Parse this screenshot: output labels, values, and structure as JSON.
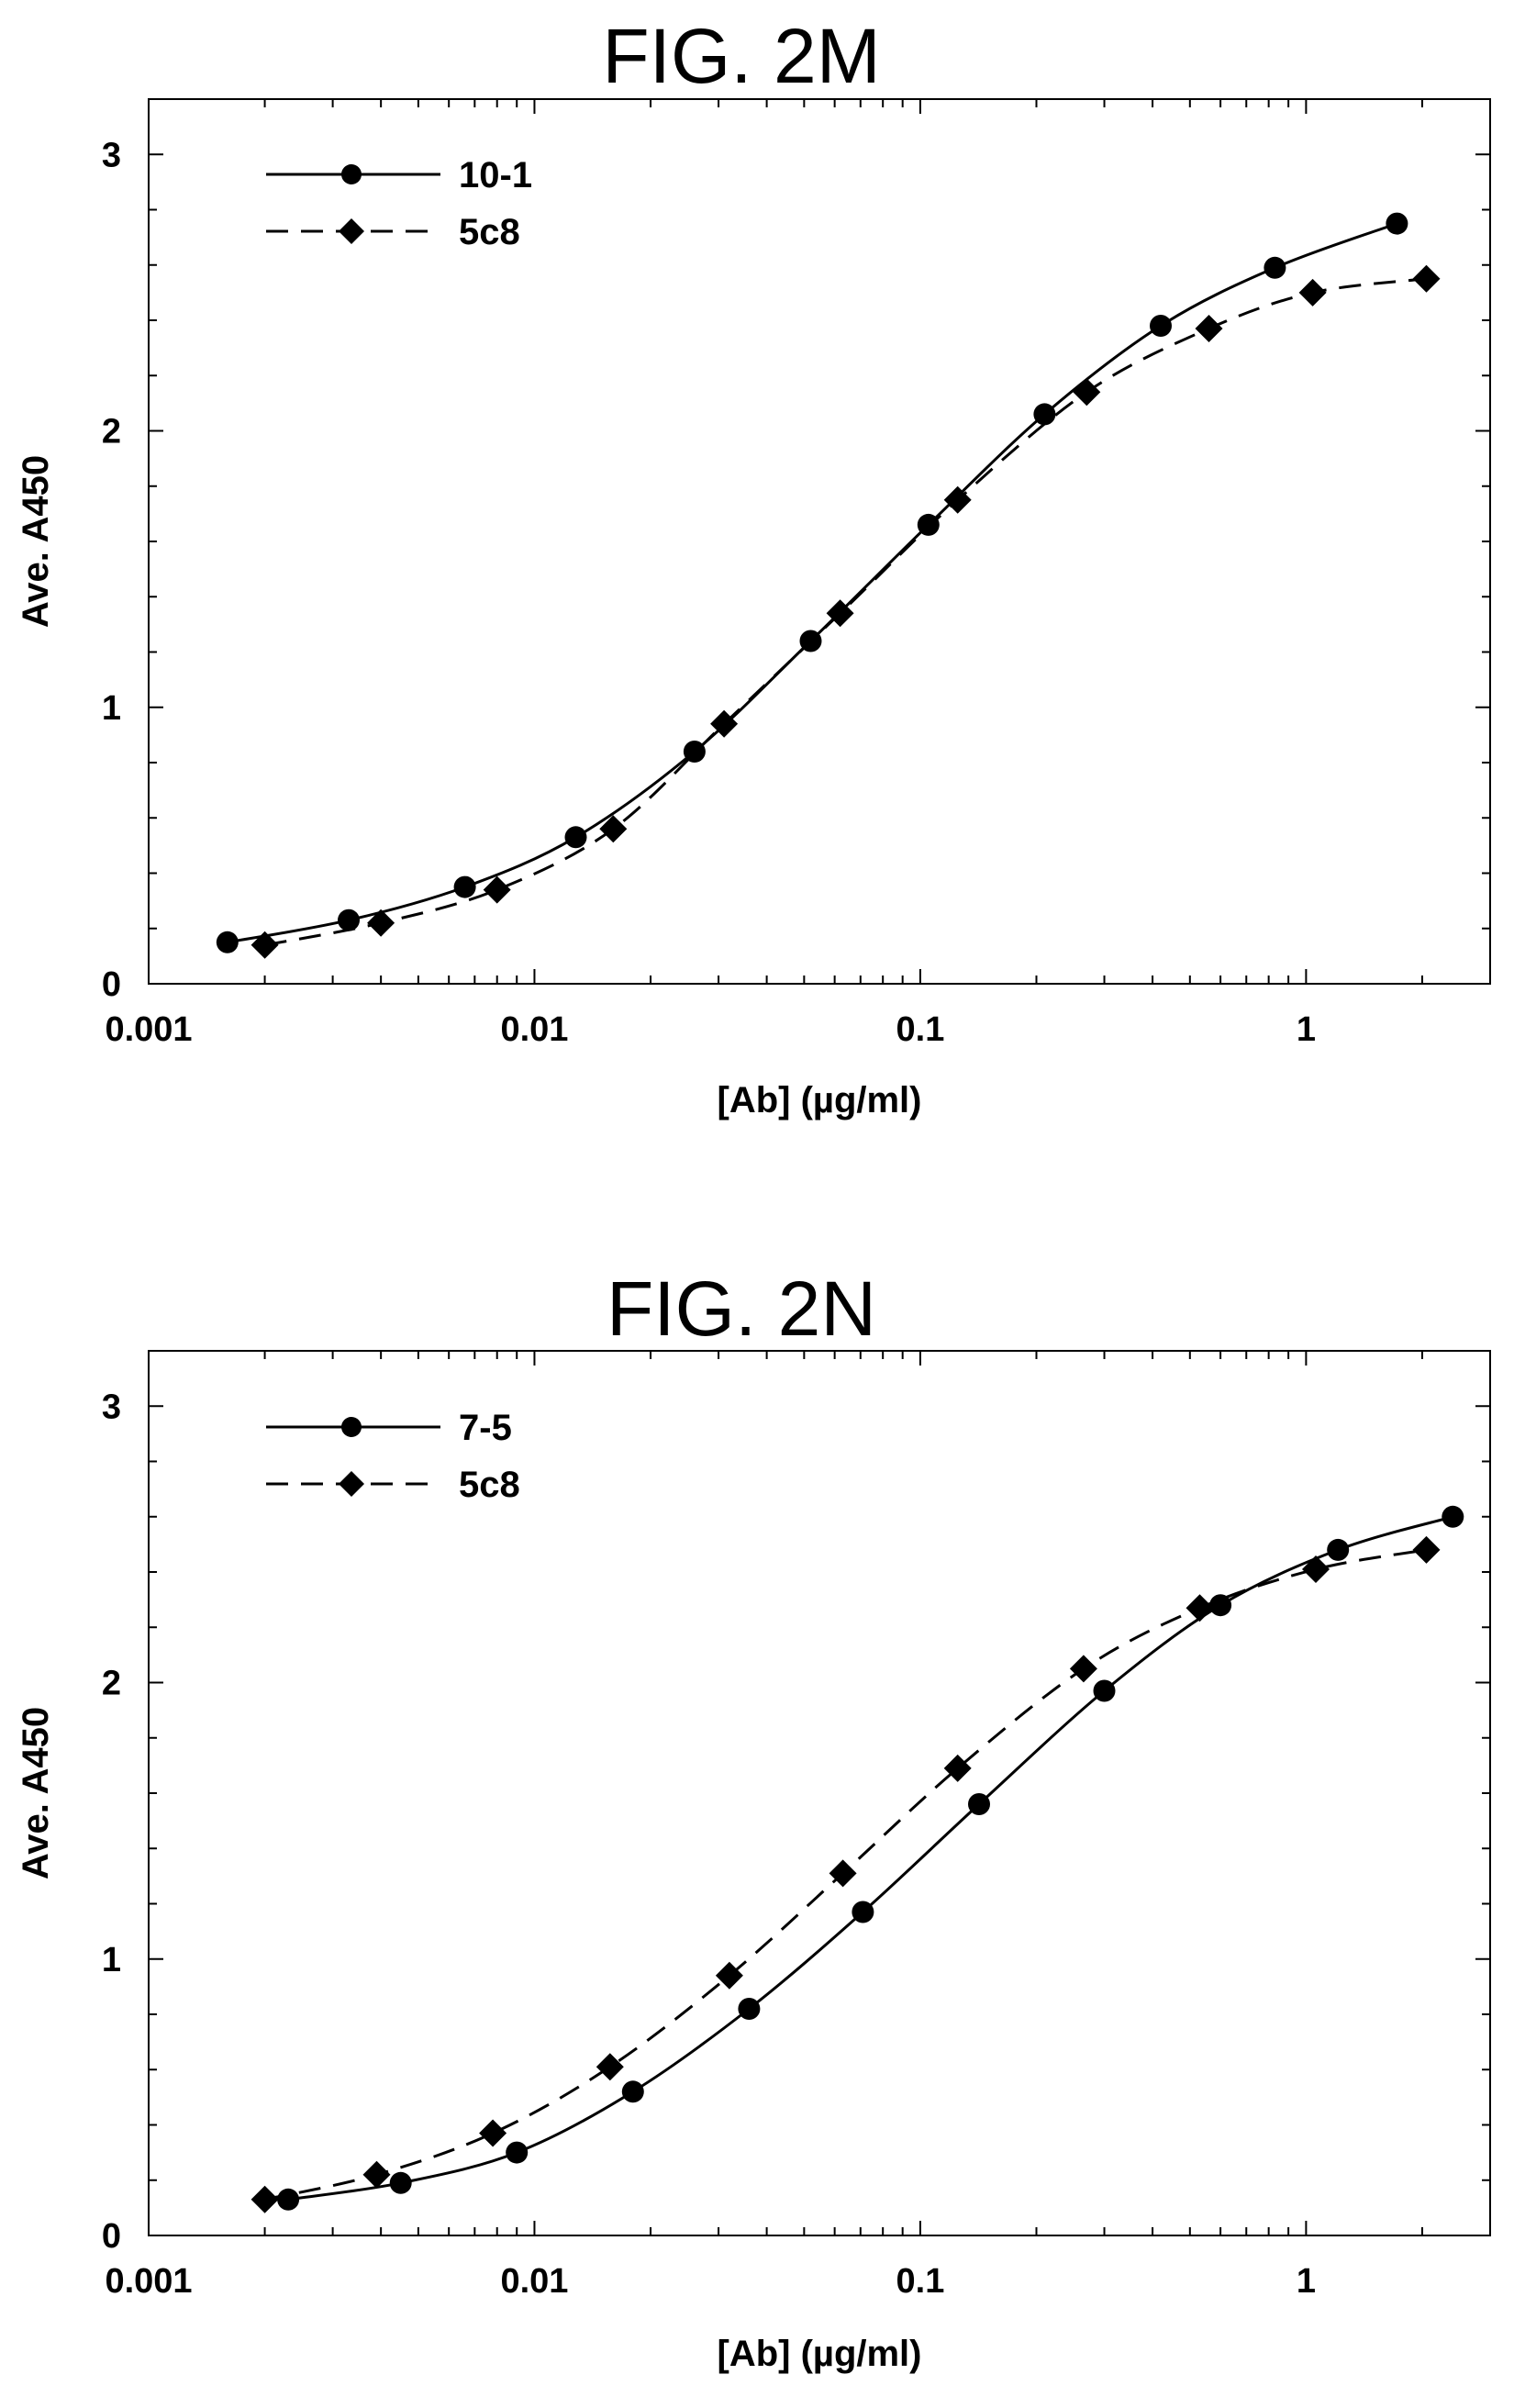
{
  "chart_data": [
    {
      "type": "line",
      "title": "FIG. 2M",
      "xlabel": "[Ab]  (µg/ml)",
      "ylabel": "Ave. A450",
      "xscale": "log",
      "xlim": [
        0.001,
        3
      ],
      "ylim": [
        0,
        3.2
      ],
      "x_ticks": [
        "0.001",
        "0.01",
        "0.1",
        "1"
      ],
      "y_ticks": [
        "0",
        "1",
        "2",
        "3"
      ],
      "grid": false,
      "legend_position": "top-left",
      "series": [
        {
          "name": "10-1",
          "marker": "circle",
          "line": "solid",
          "x": [
            0.0016,
            0.0033,
            0.0066,
            0.0128,
            0.026,
            0.052,
            0.105,
            0.21,
            0.42,
            0.83,
            1.72
          ],
          "y": [
            0.15,
            0.23,
            0.35,
            0.53,
            0.84,
            1.24,
            1.66,
            2.06,
            2.38,
            2.59,
            2.75
          ]
        },
        {
          "name": "5c8",
          "marker": "diamond",
          "line": "dashed",
          "x": [
            0.002,
            0.004,
            0.008,
            0.016,
            0.031,
            0.062,
            0.125,
            0.27,
            0.56,
            1.04,
            2.05
          ],
          "y": [
            0.14,
            0.22,
            0.34,
            0.56,
            0.94,
            1.34,
            1.75,
            2.14,
            2.37,
            2.5,
            2.55
          ]
        }
      ]
    },
    {
      "type": "line",
      "title": "FIG. 2N",
      "xlabel": "[Ab]  (µg/ml)",
      "ylabel": "Ave. A450",
      "xscale": "log",
      "xlim": [
        0.001,
        3
      ],
      "ylim": [
        0,
        3.2
      ],
      "x_ticks": [
        "0.001",
        "0.01",
        "0.1",
        "1"
      ],
      "y_ticks": [
        "0",
        "1",
        "2",
        "3"
      ],
      "grid": false,
      "legend_position": "top-left",
      "series": [
        {
          "name": "7-5",
          "marker": "circle",
          "line": "solid",
          "x": [
            0.0023,
            0.0045,
            0.009,
            0.018,
            0.036,
            0.071,
            0.142,
            0.3,
            0.6,
            1.21,
            2.4
          ],
          "y": [
            0.13,
            0.19,
            0.3,
            0.52,
            0.82,
            1.17,
            1.56,
            1.97,
            2.28,
            2.48,
            2.6
          ]
        },
        {
          "name": "5c8",
          "marker": "diamond",
          "line": "dashed",
          "x": [
            0.002,
            0.0039,
            0.0078,
            0.0157,
            0.032,
            0.063,
            0.125,
            0.265,
            0.53,
            1.06,
            2.05
          ],
          "y": [
            0.13,
            0.22,
            0.37,
            0.61,
            0.94,
            1.31,
            1.69,
            2.05,
            2.27,
            2.41,
            2.48
          ]
        }
      ]
    }
  ]
}
